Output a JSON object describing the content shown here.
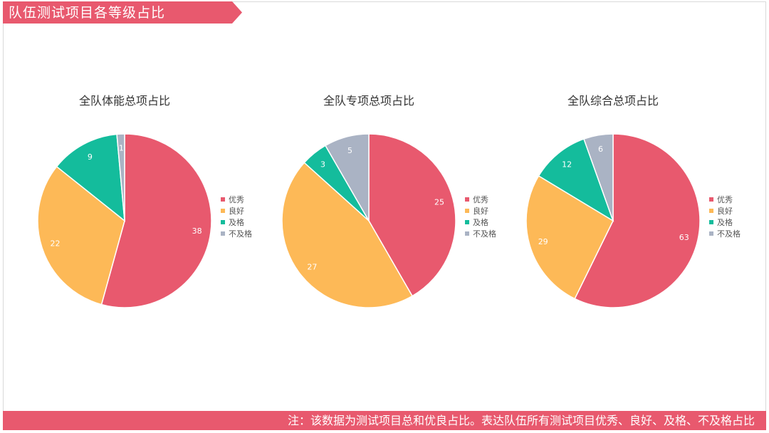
{
  "header": {
    "title": "队伍测试项目各等级占比"
  },
  "footer": {
    "note": "注：该数据为测试项目总和优良占比。表达队伍所有测试项目优秀、良好、及格、不及格占比"
  },
  "colors": {
    "accent": "#e8596e",
    "excellent": "#e8596e",
    "good": "#fdb957",
    "pass": "#14bc9c",
    "fail": "#aab3c4"
  },
  "chart_data": [
    {
      "type": "pie",
      "title": "全队体能总项占比",
      "categories": [
        "优秀",
        "良好",
        "及格",
        "不及格"
      ],
      "values": [
        38,
        22,
        9,
        1
      ],
      "legend": "right"
    },
    {
      "type": "pie",
      "title": "全队专项总项占比",
      "categories": [
        "优秀",
        "良好",
        "及格",
        "不及格"
      ],
      "values": [
        25,
        27,
        3,
        5
      ],
      "legend": "right"
    },
    {
      "type": "pie",
      "title": "全队综合总项占比",
      "categories": [
        "优秀",
        "良好",
        "及格",
        "不及格"
      ],
      "values": [
        63,
        29,
        12,
        6
      ],
      "legend": "right"
    }
  ]
}
